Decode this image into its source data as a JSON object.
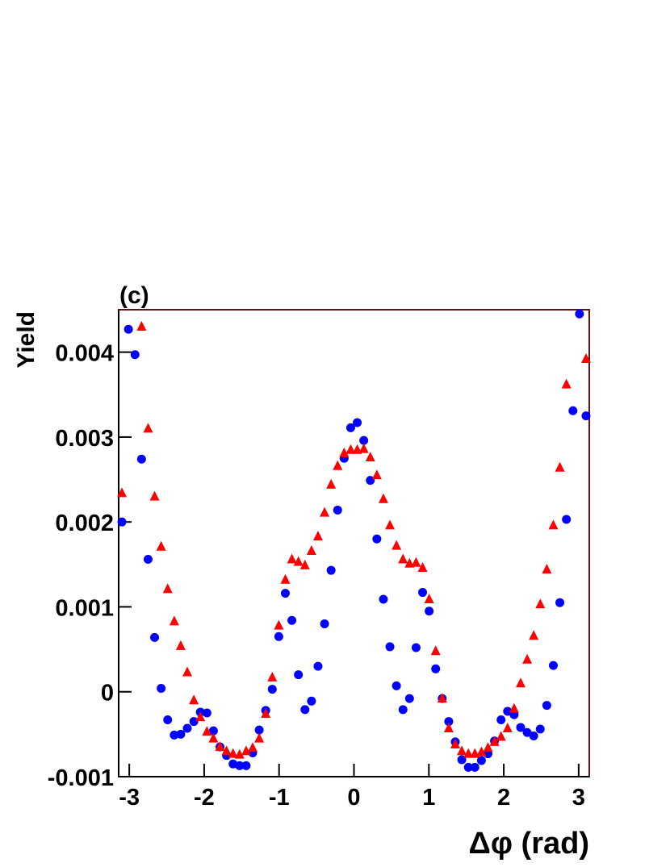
{
  "chart_data": {
    "type": "scatter",
    "title": "(c)",
    "xlabel": "Δφ (rad)",
    "ylabel": "Yield",
    "x": [
      -3.098,
      -3.0107,
      -2.9234,
      -2.8362,
      -2.7489,
      -2.6616,
      -2.5744,
      -2.4871,
      -2.3998,
      -2.3126,
      -2.2253,
      -2.138,
      -2.0508,
      -1.9635,
      -1.8762,
      -1.789,
      -1.7017,
      -1.6144,
      -1.5272,
      -1.4399,
      -1.3526,
      -1.2654,
      -1.1781,
      -1.0908,
      -1.0036,
      -0.9163,
      -0.829,
      -0.7418,
      -0.6545,
      -0.5672,
      -0.48,
      -0.3927,
      -0.3054,
      -0.2182,
      -0.1309,
      -0.0436,
      0.0436,
      0.1309,
      0.2182,
      0.3054,
      0.3927,
      0.48,
      0.5672,
      0.6545,
      0.7418,
      0.829,
      0.9163,
      1.0036,
      1.0908,
      1.1781,
      1.2654,
      1.3526,
      1.4399,
      1.5272,
      1.6144,
      1.7017,
      1.789,
      1.8762,
      1.9635,
      2.0508,
      2.138,
      2.2253,
      2.3126,
      2.3998,
      2.4871,
      2.5744,
      2.6616,
      2.7489,
      2.8362,
      2.9234,
      3.0107,
      3.098
    ],
    "series": [
      {
        "color": "#0000ff",
        "marker": "circle",
        "values": [
          0.002,
          0.00427,
          0.00397,
          0.00274,
          0.00156,
          0.00064,
          4e-05,
          -0.00033,
          -0.00051,
          -0.0005,
          -0.00043,
          -0.00035,
          -0.00024,
          -0.00025,
          -0.00046,
          -0.00065,
          -0.00075,
          -0.00085,
          -0.00087,
          -0.00087,
          -0.00072,
          -0.00045,
          -0.00022,
          3e-05,
          0.00065,
          0.00116,
          0.00084,
          0.0002,
          -0.00021,
          -0.00011,
          0.0003,
          0.0008,
          0.00143,
          0.00214,
          0.00275,
          0.00311,
          0.00317,
          0.00296,
          0.00249,
          0.0018,
          0.00109,
          0.00053,
          7e-05,
          -0.00021,
          -8e-05,
          0.00052,
          0.00117,
          0.00095,
          0.00027,
          -8e-05,
          -0.00035,
          -0.00059,
          -0.0008,
          -0.00089,
          -0.00089,
          -0.00081,
          -0.00073,
          -0.00058,
          -0.00033,
          -0.00023,
          -0.00027,
          -0.00042,
          -0.00048,
          -0.00052,
          -0.00044,
          -0.00016,
          0.00031,
          0.00105,
          0.00203,
          0.00331,
          0.00445,
          0.00325
        ]
      },
      {
        "color": "#ff0000",
        "marker": "triangle",
        "values": [
          0.00234,
          null,
          null,
          0.0043,
          0.0031,
          0.0023,
          0.00171,
          0.00121,
          0.00083,
          0.00054,
          0.00023,
          -0.0001,
          -0.0003,
          -0.00047,
          -0.00055,
          -0.00065,
          -0.0007,
          -0.00073,
          -0.00074,
          -0.0007,
          -0.00066,
          -0.00055,
          -0.00026,
          0.00017,
          0.00078,
          0.00132,
          0.00156,
          0.00153,
          0.00149,
          0.00166,
          0.00183,
          0.00211,
          0.00244,
          0.00266,
          0.00281,
          0.00285,
          0.00285,
          0.00286,
          0.00276,
          0.00255,
          0.00227,
          0.00196,
          0.00172,
          0.00156,
          0.00151,
          0.00152,
          0.00146,
          0.00109,
          0.00048,
          -8e-05,
          -0.00043,
          -0.00062,
          -0.0007,
          -0.00073,
          -0.00073,
          -0.00071,
          -0.00066,
          -0.00059,
          -0.00053,
          -0.00043,
          -0.0002,
          0.0001,
          0.00038,
          0.00066,
          0.00103,
          0.00144,
          0.00196,
          0.00264,
          0.00362,
          null,
          null,
          0.00392
        ]
      }
    ],
    "xlim": [
      -3.1416,
      3.1416
    ],
    "xticks": [
      -3,
      -2,
      -1,
      0,
      1,
      2,
      3
    ],
    "ylim": [
      -0.001,
      0.0045
    ],
    "yticks": [
      -0.001,
      0,
      0.001,
      0.002,
      0.003,
      0.004
    ],
    "frame_color": "#6b1010"
  }
}
